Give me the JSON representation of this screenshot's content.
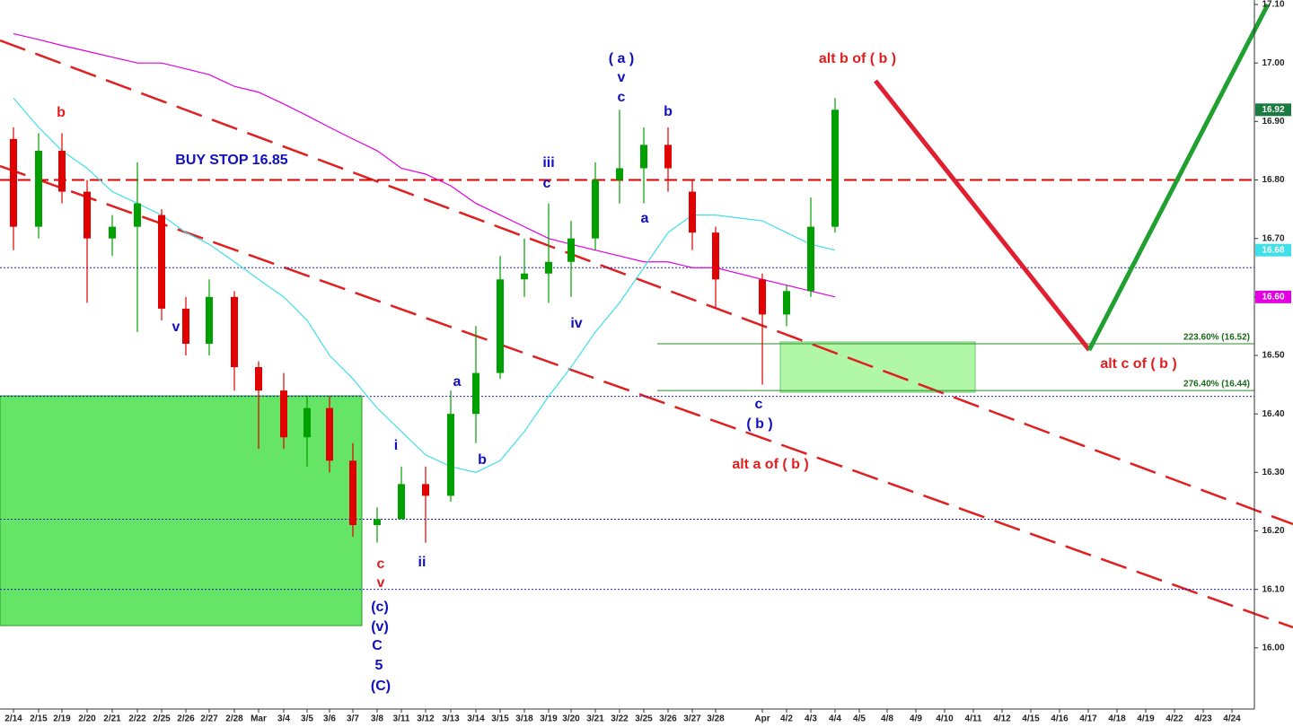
{
  "chart_data": {
    "type": "candlestick",
    "categories": [
      "2/14",
      "2/15",
      "2/19",
      "2/20",
      "2/21",
      "2/22",
      "2/25",
      "2/26",
      "2/27",
      "2/28",
      "Mar",
      "3/4",
      "3/5",
      "3/6",
      "3/7",
      "3/8",
      "3/11",
      "3/12",
      "3/13",
      "3/14",
      "3/15",
      "3/18",
      "3/19",
      "3/20",
      "3/21",
      "3/22",
      "3/25",
      "3/26",
      "3/27",
      "3/28",
      "Apr",
      "4/2",
      "4/3",
      "4/4",
      "4/5",
      "4/8",
      "4/9",
      "4/10",
      "4/11",
      "4/12",
      "4/15",
      "4/16",
      "4/17",
      "4/18",
      "4/19",
      "4/22",
      "4/23",
      "4/24"
    ],
    "open": [
      16.87,
      16.72,
      16.85,
      16.78,
      16.7,
      16.72,
      16.74,
      16.58,
      16.52,
      16.6,
      16.48,
      16.44,
      16.36,
      16.41,
      16.32,
      16.21,
      16.22,
      16.28,
      16.26,
      16.4,
      16.47,
      16.63,
      16.64,
      16.66,
      16.7,
      16.8,
      16.82,
      16.86,
      16.78,
      16.71,
      16.63,
      16.57,
      16.61,
      16.72,
      null,
      null,
      null,
      null,
      null,
      null,
      null,
      null,
      null,
      null,
      null,
      null,
      null,
      null
    ],
    "high": [
      16.89,
      16.88,
      16.88,
      16.8,
      16.74,
      16.83,
      16.75,
      16.6,
      16.63,
      16.61,
      16.49,
      16.47,
      16.43,
      16.43,
      16.35,
      16.24,
      16.31,
      16.31,
      16.44,
      16.55,
      16.67,
      16.7,
      16.76,
      16.73,
      16.83,
      16.92,
      16.89,
      16.89,
      16.8,
      16.72,
      16.64,
      16.62,
      16.77,
      16.94,
      null,
      null,
      null,
      null,
      null,
      null,
      null,
      null,
      null,
      null,
      null,
      null,
      null,
      null
    ],
    "low": [
      16.68,
      16.7,
      16.76,
      16.59,
      16.67,
      16.54,
      16.56,
      16.5,
      16.5,
      16.44,
      16.34,
      16.34,
      16.31,
      16.3,
      16.19,
      16.18,
      16.22,
      16.18,
      16.25,
      16.35,
      16.46,
      16.6,
      16.59,
      16.6,
      16.68,
      16.76,
      16.76,
      16.78,
      16.68,
      16.58,
      16.45,
      16.55,
      16.6,
      16.71,
      null,
      null,
      null,
      null,
      null,
      null,
      null,
      null,
      null,
      null,
      null,
      null,
      null,
      null
    ],
    "close": [
      16.72,
      16.85,
      16.78,
      16.7,
      16.72,
      16.76,
      16.58,
      16.52,
      16.6,
      16.48,
      16.44,
      16.36,
      16.41,
      16.32,
      16.21,
      16.22,
      16.28,
      16.26,
      16.4,
      16.47,
      16.63,
      16.64,
      16.66,
      16.7,
      16.8,
      16.82,
      16.86,
      16.82,
      16.71,
      16.63,
      16.57,
      16.61,
      16.72,
      16.92,
      null,
      null,
      null,
      null,
      null,
      null,
      null,
      null,
      null,
      null,
      null,
      null,
      null,
      null
    ],
    "up_color": "#00a000",
    "down_color": "#e00000",
    "series": [
      {
        "color": "#e000e0",
        "values": [
          17.05,
          17.04,
          17.03,
          17.02,
          17.01,
          17.0,
          17.0,
          16.99,
          16.98,
          16.96,
          16.95,
          16.93,
          16.91,
          16.89,
          16.87,
          16.85,
          16.82,
          16.81,
          16.79,
          16.76,
          16.74,
          16.72,
          16.7,
          16.69,
          16.68,
          16.67,
          16.66,
          16.66,
          16.65,
          16.65,
          16.63,
          16.62,
          16.61,
          16.6,
          null,
          null,
          null,
          null,
          null,
          null,
          null,
          null,
          null,
          null,
          null,
          null,
          null,
          null
        ]
      },
      {
        "color": "#40e0e8",
        "values": [
          16.94,
          16.89,
          16.85,
          16.82,
          16.78,
          16.76,
          16.74,
          16.71,
          16.69,
          16.66,
          16.63,
          16.6,
          16.56,
          16.5,
          16.46,
          16.41,
          16.37,
          16.33,
          16.31,
          16.3,
          16.32,
          16.37,
          16.43,
          16.48,
          16.54,
          16.59,
          16.65,
          16.71,
          16.74,
          16.74,
          16.73,
          16.71,
          16.69,
          16.68,
          null,
          null,
          null,
          null,
          null,
          null,
          null,
          null,
          null,
          null,
          null,
          null,
          null,
          null
        ]
      }
    ],
    "ylim": [
      15.9,
      17.1
    ],
    "yticks": [
      {
        "value": 16.0,
        "label": "16.00"
      },
      {
        "value": 16.1,
        "label": "16.10"
      },
      {
        "value": 16.2,
        "label": "16.20"
      },
      {
        "value": 16.3,
        "label": "16.30"
      },
      {
        "value": 16.4,
        "label": "16.40"
      },
      {
        "value": 16.5,
        "label": "16.50"
      },
      {
        "value": 16.6,
        "label": "16.60"
      },
      {
        "value": 16.7,
        "label": "16.70"
      },
      {
        "value": 16.8,
        "label": "16.80"
      },
      {
        "value": 16.9,
        "label": "16.90"
      },
      {
        "value": 17.0,
        "label": "17.00"
      },
      {
        "value": 17.1,
        "label": "17.10"
      }
    ],
    "price_badges": [
      {
        "value": 16.92,
        "color": "#1a7a40"
      },
      {
        "value": 16.68,
        "color": "#40e0e8"
      },
      {
        "value": 16.6,
        "label": "16.60",
        "color": "#e000e0"
      }
    ],
    "levels": [
      {
        "value": 16.8,
        "color": "#e00000",
        "style": "dash"
      },
      {
        "value": 16.65,
        "color": "#2020c0",
        "style": "dot"
      },
      {
        "value": 16.43,
        "color": "#2020c0",
        "style": "dot"
      },
      {
        "value": 16.22,
        "color": "#2020c0",
        "style": "dot"
      },
      {
        "value": 16.1,
        "color": "#2020c0",
        "style": "dot"
      }
    ],
    "fib_levels": [
      {
        "value": 16.52,
        "label": "223.60% (16.52)"
      },
      {
        "value": 16.44,
        "label": "276.40% (16.44)"
      }
    ],
    "annotations": [
      {
        "text": "b",
        "color": "#e02020"
      },
      {
        "text": "c",
        "color": "#e02020"
      },
      {
        "text": "v",
        "color": "#e02020"
      },
      {
        "text": "alt b of ( b )",
        "color": "#e02020"
      },
      {
        "text": "alt a of ( b )",
        "color": "#e02020"
      },
      {
        "text": "alt c of ( b )",
        "color": "#e02020"
      },
      {
        "text": "BUY STOP 16.85",
        "color": "#1010c0"
      },
      {
        "text": "v",
        "color": "#1010c0"
      },
      {
        "text": "( a )",
        "color": "#1010c0"
      },
      {
        "text": "v",
        "color": "#1010c0"
      },
      {
        "text": "c",
        "color": "#1010c0"
      },
      {
        "text": "b",
        "color": "#1010c0"
      },
      {
        "text": "iii",
        "color": "#1010c0"
      },
      {
        "text": "c",
        "color": "#1010c0"
      },
      {
        "text": "a",
        "color": "#1010c0"
      },
      {
        "text": "iv",
        "color": "#1010c0"
      },
      {
        "text": "a",
        "color": "#1010c0"
      },
      {
        "text": "b",
        "color": "#1010c0"
      },
      {
        "text": "i",
        "color": "#1010c0"
      },
      {
        "text": "ii",
        "color": "#1010c0"
      },
      {
        "text": "c",
        "color": "#1010c0"
      },
      {
        "text": "( b )",
        "color": "#1010c0"
      },
      {
        "text": "(c)",
        "color": "#1010c0"
      },
      {
        "text": "(v)",
        "color": "#1010c0"
      },
      {
        "text": "C",
        "color": "#1010c0"
      },
      {
        "text": "5",
        "color": "#1010c0"
      },
      {
        "text": "(C)",
        "color": "#1010c0"
      }
    ]
  }
}
